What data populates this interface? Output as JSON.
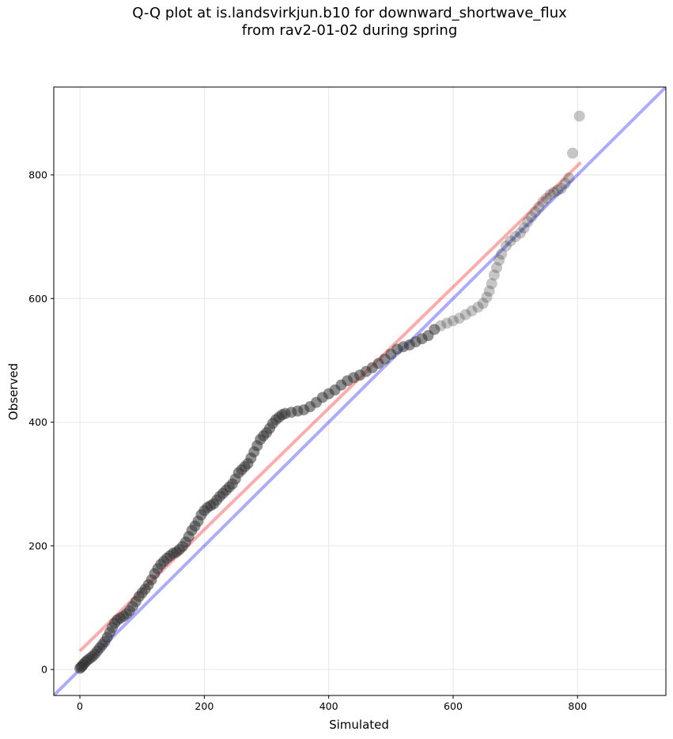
{
  "chart_data": {
    "type": "scatter",
    "title_line1": "Q-Q plot at is.landsvirkjun.b10 for downward_shortwave_flux",
    "title_line2": "from rav2-01-02 during spring",
    "xlabel": "Simulated",
    "ylabel": "Observed",
    "xlim": [
      -42,
      942
    ],
    "ylim": [
      -42,
      942
    ],
    "xticks": [
      0,
      200,
      400,
      600,
      800
    ],
    "yticks": [
      0,
      200,
      400,
      600,
      800
    ],
    "grid": true,
    "colors": {
      "points": "#333333",
      "identity_line": "#0000ff",
      "fit_line": "#ff0000",
      "grid": "#e6e6e6"
    },
    "identity_line": {
      "x": [
        -42,
        942
      ],
      "y": [
        -42,
        942
      ]
    },
    "fit_line": {
      "x": [
        0,
        805
      ],
      "y": [
        30,
        820
      ]
    },
    "points_dense": [
      [
        0,
        2
      ],
      [
        2,
        4
      ],
      [
        4,
        6
      ],
      [
        6,
        9
      ],
      [
        9,
        12
      ],
      [
        12,
        15
      ],
      [
        16,
        18
      ],
      [
        20,
        21
      ],
      [
        24,
        25
      ],
      [
        28,
        30
      ],
      [
        32,
        35
      ],
      [
        36,
        40
      ],
      [
        40,
        45
      ],
      [
        44,
        52
      ],
      [
        48,
        60
      ],
      [
        52,
        68
      ],
      [
        56,
        75
      ],
      [
        60,
        80
      ],
      [
        65,
        83
      ],
      [
        70,
        86
      ],
      [
        75,
        90
      ],
      [
        80,
        95
      ],
      [
        85,
        102
      ],
      [
        90,
        110
      ],
      [
        95,
        118
      ],
      [
        100,
        124
      ],
      [
        105,
        130
      ],
      [
        110,
        137
      ],
      [
        115,
        145
      ],
      [
        120,
        155
      ],
      [
        125,
        163
      ],
      [
        130,
        170
      ],
      [
        135,
        175
      ],
      [
        140,
        180
      ],
      [
        145,
        184
      ],
      [
        150,
        188
      ],
      [
        155,
        190
      ],
      [
        160,
        194
      ],
      [
        165,
        199
      ],
      [
        170,
        206
      ],
      [
        175,
        215
      ],
      [
        180,
        225
      ],
      [
        185,
        232
      ],
      [
        190,
        240
      ],
      [
        195,
        250
      ],
      [
        200,
        257
      ],
      [
        205,
        262
      ],
      [
        210,
        265
      ],
      [
        215,
        268
      ],
      [
        220,
        274
      ],
      [
        225,
        280
      ],
      [
        230,
        285
      ],
      [
        235,
        290
      ],
      [
        240,
        295
      ],
      [
        245,
        300
      ],
      [
        250,
        308
      ],
      [
        255,
        318
      ],
      [
        260,
        323
      ],
      [
        265,
        328
      ],
      [
        270,
        333
      ],
      [
        275,
        342
      ],
      [
        280,
        352
      ],
      [
        285,
        362
      ],
      [
        290,
        372
      ],
      [
        295,
        378
      ],
      [
        300,
        383
      ],
      [
        305,
        390
      ],
      [
        310,
        398
      ],
      [
        315,
        404
      ],
      [
        320,
        408
      ],
      [
        325,
        412
      ],
      [
        330,
        414
      ],
      [
        340,
        416
      ],
      [
        350,
        418
      ],
      [
        360,
        420
      ],
      [
        370,
        425
      ],
      [
        380,
        432
      ],
      [
        390,
        440
      ],
      [
        400,
        446
      ],
      [
        410,
        452
      ],
      [
        420,
        460
      ],
      [
        430,
        467
      ],
      [
        440,
        472
      ],
      [
        450,
        476
      ],
      [
        460,
        482
      ],
      [
        470,
        488
      ],
      [
        480,
        495
      ],
      [
        490,
        502
      ],
      [
        500,
        510
      ],
      [
        510,
        518
      ],
      [
        520,
        522
      ],
      [
        530,
        525
      ],
      [
        540,
        530
      ],
      [
        550,
        535
      ],
      [
        560,
        540
      ],
      [
        570,
        550
      ]
    ],
    "points_sparse": [
      [
        580,
        556
      ],
      [
        590,
        560
      ],
      [
        600,
        564
      ],
      [
        610,
        568
      ],
      [
        620,
        574
      ],
      [
        630,
        580
      ],
      [
        640,
        586
      ],
      [
        648,
        592
      ],
      [
        654,
        602
      ],
      [
        658,
        612
      ],
      [
        662,
        624
      ],
      [
        666,
        638
      ],
      [
        670,
        650
      ],
      [
        674,
        662
      ],
      [
        678,
        672
      ],
      [
        685,
        685
      ],
      [
        692,
        693
      ],
      [
        700,
        700
      ],
      [
        708,
        706
      ],
      [
        714,
        714
      ],
      [
        720,
        724
      ],
      [
        726,
        732
      ],
      [
        732,
        740
      ],
      [
        738,
        748
      ],
      [
        744,
        756
      ],
      [
        750,
        762
      ],
      [
        756,
        768
      ],
      [
        762,
        772
      ],
      [
        768,
        775
      ],
      [
        774,
        778
      ],
      [
        780,
        786
      ],
      [
        786,
        795
      ],
      [
        792,
        835
      ],
      [
        803,
        895
      ]
    ]
  }
}
